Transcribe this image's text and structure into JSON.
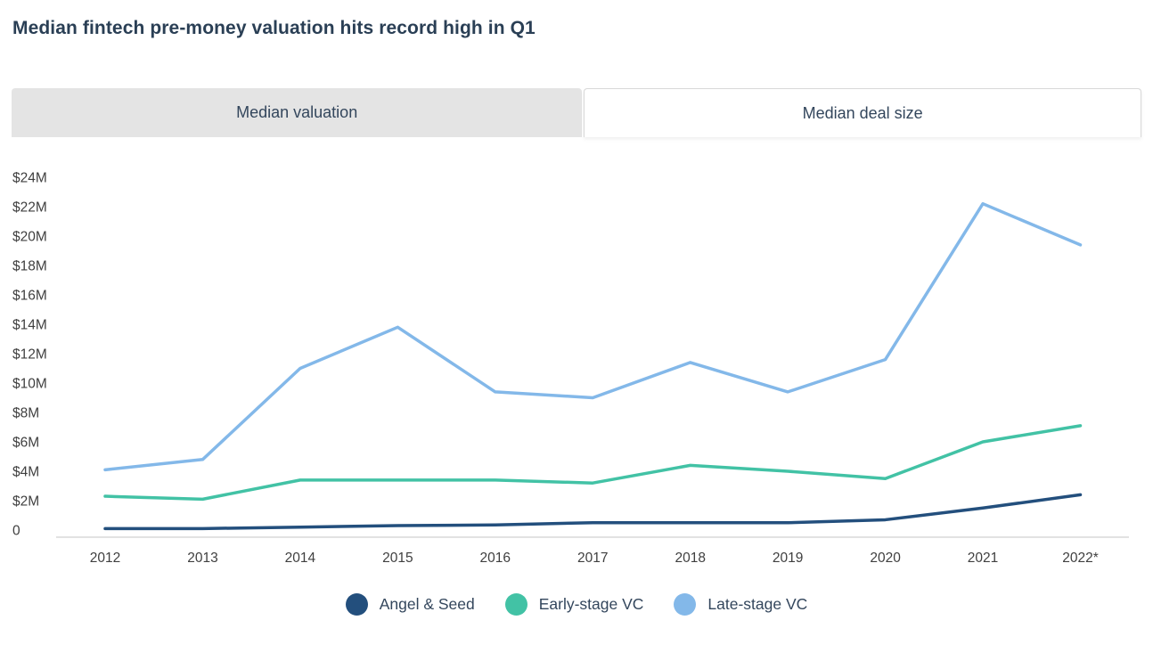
{
  "title": "Median fintech pre-money valuation hits record high in Q1",
  "tabs": [
    {
      "label": "Median valuation",
      "active": false
    },
    {
      "label": "Median deal size",
      "active": true
    }
  ],
  "colors": {
    "title_text": "#2a3f55",
    "tab_text": "#33465c",
    "inactive_tab_bg": "#e4e4e4",
    "active_tab_bg": "#ffffff",
    "axis_text": "#3f3f3f",
    "axis_line": "#d9d9d9",
    "angel_seed": "#234f7d",
    "early_stage": "#42c2a5",
    "late_stage": "#83b8e9"
  },
  "chart_data": {
    "type": "line",
    "title": "Median fintech pre-money valuation hits record high in Q1",
    "active_view": "Median deal size",
    "categories": [
      "2012",
      "2013",
      "2014",
      "2015",
      "2016",
      "2017",
      "2018",
      "2019",
      "2020",
      "2021",
      "2022*"
    ],
    "series": [
      {
        "name": "Angel & Seed",
        "color": "#234f7d",
        "values": [
          0.1,
          0.1,
          0.2,
          0.3,
          0.35,
          0.5,
          0.5,
          0.5,
          0.7,
          1.5,
          2.4
        ]
      },
      {
        "name": "Early-stage VC",
        "color": "#42c2a5",
        "values": [
          2.3,
          2.1,
          3.4,
          3.4,
          3.4,
          3.2,
          4.4,
          4.0,
          3.5,
          6.0,
          7.1
        ]
      },
      {
        "name": "Late-stage VC",
        "color": "#83b8e9",
        "values": [
          4.1,
          4.8,
          11.0,
          13.8,
          9.4,
          9.0,
          11.4,
          9.4,
          11.6,
          22.2,
          19.4
        ]
      }
    ],
    "xlabel": "",
    "ylabel": "",
    "ylim": [
      0,
      24
    ],
    "y_ticks": [
      {
        "v": 0,
        "label": "0"
      },
      {
        "v": 2,
        "label": "$2M"
      },
      {
        "v": 4,
        "label": "$4M"
      },
      {
        "v": 6,
        "label": "$6M"
      },
      {
        "v": 8,
        "label": "$8M"
      },
      {
        "v": 10,
        "label": "$10M"
      },
      {
        "v": 12,
        "label": "$12M"
      },
      {
        "v": 14,
        "label": "$14M"
      },
      {
        "v": 16,
        "label": "$16M"
      },
      {
        "v": 18,
        "label": "$18M"
      },
      {
        "v": 20,
        "label": "$20M"
      },
      {
        "v": 22,
        "label": "$22M"
      },
      {
        "v": 24,
        "label": "$24M"
      }
    ],
    "grid": false,
    "legend_position": "bottom"
  }
}
